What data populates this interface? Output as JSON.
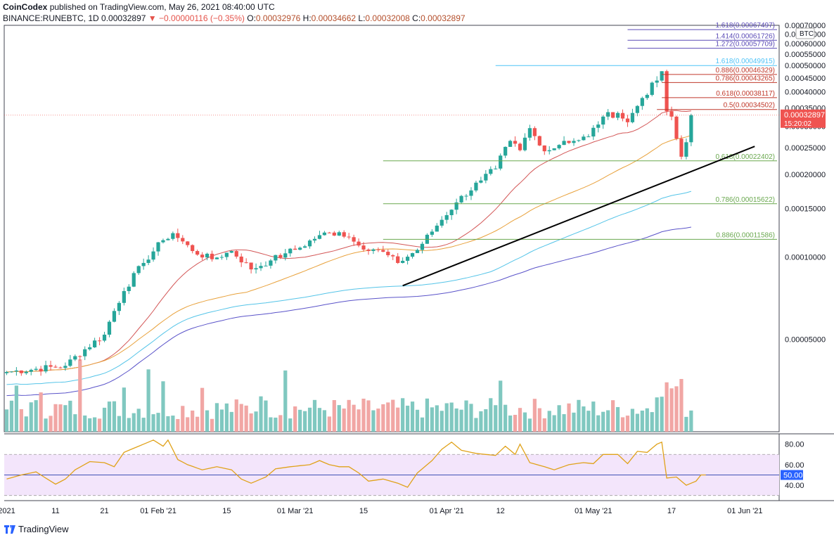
{
  "header": {
    "publisher": "CoinCodex",
    "published_text": "published on TradingView.com, May 26, 2021 08:40:00 UTC",
    "symbol": "BINANCE:RUNEBTC, 1D",
    "last": "0.00032897",
    "change": "−0.00000116 (−0.35%)",
    "o_label": "O:",
    "o_value": "0.00032976",
    "h_label": "H:",
    "h_value": "0.00034662",
    "l_label": "L:",
    "l_value": "0.00032008",
    "c_label": "C:",
    "c_value": "0.00032897"
  },
  "footer": {
    "brand": "TradingView"
  },
  "colors": {
    "up": "#26a69a",
    "down": "#ef5350",
    "vol_up": "#80c8c0",
    "vol_down": "#f1a6a4",
    "fib_ext": "#5b4bb7",
    "fib_ext_cyan": "#4fc3f7",
    "fib_red": "#c0392b",
    "fib_green": "#6aa84f",
    "ma_red": "#d35656",
    "ma_orange": "#e8a13b",
    "ma_cyan": "#54c4e8",
    "ma_blue": "#5a53c9",
    "rsi": "#e0a21a",
    "rsi_band": "#f3e5fb",
    "rsi_mid": "#3f51b5",
    "price_badge": "#ef5350"
  },
  "chart_data": {
    "type": "candlestick",
    "currency_label": "BTC",
    "y_ticks": [
      "0.00070000",
      "0.00065000",
      "0.00060000",
      "0.00055000",
      "0.00050000",
      "0.00045000",
      "0.00040000",
      "0.00035000",
      "0.00030000",
      "0.00025000",
      "0.00020000",
      "0.00015000",
      "0.00010000",
      "0.00005000"
    ],
    "y_tick_values": [
      0.0007,
      0.00065,
      0.0006,
      0.00055,
      0.0005,
      0.00045,
      0.0004,
      0.00035,
      0.0003,
      0.00025,
      0.0002,
      0.00015,
      0.0001,
      5e-05
    ],
    "ylim": [
      2.3e-05,
      0.0007
    ],
    "x_ticks": [
      {
        "label": "2021",
        "day": 0
      },
      {
        "label": "11",
        "day": 10
      },
      {
        "label": "21",
        "day": 20
      },
      {
        "label": "01 Feb '21",
        "day": 31
      },
      {
        "label": "15",
        "day": 45
      },
      {
        "label": "01 Mar '21",
        "day": 59
      },
      {
        "label": "15",
        "day": 73
      },
      {
        "label": "01 Apr '21",
        "day": 90
      },
      {
        "label": "12",
        "day": 101
      },
      {
        "label": "01 May '21",
        "day": 120
      },
      {
        "label": "17",
        "day": 136
      },
      {
        "label": "01 Jun '21",
        "day": 151
      }
    ],
    "xlim": [
      -0.5,
      158
    ],
    "last_price_label": "0.00032897",
    "countdown_label": "15:20:02",
    "fib_levels": [
      {
        "label": "1.618(0.00067497)",
        "value": 0.00067497,
        "group": "ext",
        "x_from": 127
      },
      {
        "label": "1.414(0.00061726)",
        "value": 0.00061726,
        "group": "ext",
        "x_from": 127
      },
      {
        "label": "1.272(0.00057709)",
        "value": 0.00057709,
        "group": "ext",
        "x_from": 127
      },
      {
        "label": "1.618(0.00049915)",
        "value": 0.00049915,
        "group": "ext_cyan",
        "x_from": 100
      },
      {
        "label": "0.886(0.00046329)",
        "value": 0.00046329,
        "group": "red",
        "x_from": 134
      },
      {
        "label": "0.786(0.00043265)",
        "value": 0.00043265,
        "group": "red",
        "x_from": 134
      },
      {
        "label": "0.618(0.00038117)",
        "value": 0.00038117,
        "group": "red",
        "x_from": 134
      },
      {
        "label": "0.5(0.00034502)",
        "value": 0.00034502,
        "group": "red",
        "x_from": 133
      },
      {
        "label": "0.618(0.00022402)",
        "value": 0.00022402,
        "group": "green",
        "x_from": 77
      },
      {
        "label": "0.786(0.00015622)",
        "value": 0.00015622,
        "group": "green",
        "x_from": 77
      },
      {
        "label": "0.886(0.00011586)",
        "value": 0.00011586,
        "group": "green",
        "x_from": 77
      }
    ],
    "trendline": {
      "from": [
        81,
        7.85e-05
      ],
      "to": [
        153,
        0.000253
      ]
    },
    "anchors": [
      [
        0,
        3.8e-05
      ],
      [
        12,
        4e-05
      ],
      [
        20,
        5.2e-05
      ],
      [
        24,
        7.5e-05
      ],
      [
        28,
        9.5e-05
      ],
      [
        32,
        0.000115
      ],
      [
        34,
        0.000122
      ],
      [
        38,
        0.000105
      ],
      [
        42,
        9.8e-05
      ],
      [
        46,
        0.000105
      ],
      [
        50,
        9e-05
      ],
      [
        54,
        9.7e-05
      ],
      [
        57,
        0.000103
      ],
      [
        60,
        0.000108
      ],
      [
        64,
        0.00012
      ],
      [
        68,
        0.000123
      ],
      [
        70,
        0.000118
      ],
      [
        72,
        0.00011
      ],
      [
        76,
        0.000106
      ],
      [
        80,
        9.5e-05
      ],
      [
        84,
        0.000106
      ],
      [
        88,
        0.00013
      ],
      [
        92,
        0.000158
      ],
      [
        97,
        0.00019
      ],
      [
        100,
        0.00021
      ],
      [
        103,
        0.000265
      ],
      [
        105,
        0.000245
      ],
      [
        107,
        0.000295
      ],
      [
        109,
        0.000255
      ],
      [
        111,
        0.000245
      ],
      [
        114,
        0.000265
      ],
      [
        116,
        0.000265
      ],
      [
        119,
        0.000275
      ],
      [
        122,
        0.000325
      ],
      [
        125,
        0.000335
      ],
      [
        127,
        0.00031
      ],
      [
        130,
        0.00038
      ],
      [
        133,
        0.00044
      ],
      [
        134,
        0.000476
      ],
      [
        135,
        0.00034
      ],
      [
        136,
        0.000325
      ],
      [
        137,
        0.00027
      ],
      [
        138,
        0.000232
      ],
      [
        139,
        0.000262
      ],
      [
        140,
        0.000329
      ]
    ],
    "ma_labels": [],
    "rsi": {
      "y_ticks": [
        "80.00",
        "60.00",
        "40.00"
      ],
      "y_tick_values": [
        80,
        60,
        40
      ],
      "ylim": [
        25,
        88
      ],
      "band": [
        70,
        30
      ],
      "current_label": "50.00",
      "current_value": 50,
      "anchors": [
        [
          0,
          46
        ],
        [
          3,
          50
        ],
        [
          6,
          53
        ],
        [
          8,
          47
        ],
        [
          10,
          41
        ],
        [
          12,
          46
        ],
        [
          14,
          55
        ],
        [
          17,
          63
        ],
        [
          20,
          62
        ],
        [
          22,
          58
        ],
        [
          24,
          72
        ],
        [
          27,
          78
        ],
        [
          30,
          84
        ],
        [
          32,
          78
        ],
        [
          33,
          84
        ],
        [
          35,
          65
        ],
        [
          37,
          60
        ],
        [
          40,
          55
        ],
        [
          43,
          58
        ],
        [
          46,
          55
        ],
        [
          48,
          46
        ],
        [
          50,
          42
        ],
        [
          53,
          48
        ],
        [
          55,
          56
        ],
        [
          58,
          58
        ],
        [
          60,
          59
        ],
        [
          62,
          60
        ],
        [
          64,
          64
        ],
        [
          66,
          60
        ],
        [
          68,
          58
        ],
        [
          70,
          58
        ],
        [
          72,
          52
        ],
        [
          74,
          44
        ],
        [
          77,
          46
        ],
        [
          80,
          42
        ],
        [
          82,
          38
        ],
        [
          84,
          52
        ],
        [
          87,
          64
        ],
        [
          89,
          75
        ],
        [
          91,
          82
        ],
        [
          93,
          74
        ],
        [
          96,
          71
        ],
        [
          98,
          70
        ],
        [
          100,
          69
        ],
        [
          102,
          78
        ],
        [
          104,
          70
        ],
        [
          105,
          80
        ],
        [
          107,
          62
        ],
        [
          110,
          58
        ],
        [
          112,
          55
        ],
        [
          115,
          60
        ],
        [
          118,
          62
        ],
        [
          120,
          61
        ],
        [
          122,
          70
        ],
        [
          125,
          70
        ],
        [
          127,
          61
        ],
        [
          129,
          73
        ],
        [
          131,
          72
        ],
        [
          133,
          80
        ],
        [
          134,
          82
        ],
        [
          135,
          47
        ],
        [
          137,
          48
        ],
        [
          139,
          40
        ],
        [
          141,
          44
        ],
        [
          142,
          50
        ],
        [
          143,
          50
        ]
      ]
    }
  }
}
